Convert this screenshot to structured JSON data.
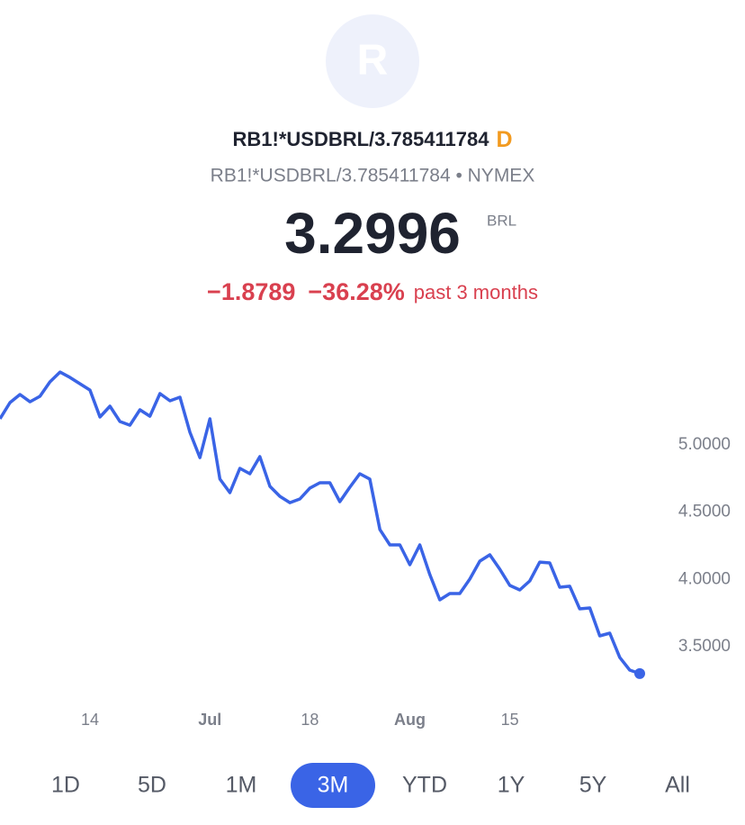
{
  "header": {
    "logo_letter": "R",
    "symbol": "RB1!*USDBRL/3.785411784",
    "badge": "D",
    "subtitle": "RB1!*USDBRL/3.785411784 • NYMEX",
    "price": "3.2996",
    "currency": "BRL",
    "change": "−1.8789",
    "change_percent": "−36.28%",
    "period": "past 3 months"
  },
  "chart_data": {
    "type": "line",
    "color": "#3a64e6",
    "grid": false,
    "categories": [
      null,
      null,
      null,
      null,
      null,
      null,
      null,
      null,
      null,
      "14",
      null,
      null,
      null,
      null,
      null,
      null,
      null,
      null,
      null,
      null,
      null,
      "Jul",
      null,
      null,
      null,
      null,
      null,
      null,
      null,
      null,
      null,
      "18",
      null,
      null,
      null,
      null,
      null,
      null,
      null,
      null,
      null,
      "Aug",
      null,
      null,
      null,
      null,
      null,
      null,
      null,
      null,
      null,
      "15",
      null,
      null,
      null,
      null,
      null,
      null,
      null,
      null,
      null,
      null,
      null,
      null,
      null
    ],
    "values": [
      5.194,
      5.315,
      5.375,
      5.321,
      5.362,
      5.469,
      5.542,
      5.502,
      5.455,
      5.408,
      5.208,
      5.288,
      5.174,
      5.147,
      5.261,
      5.214,
      5.382,
      5.328,
      5.355,
      5.094,
      4.906,
      5.194,
      4.746,
      4.645,
      4.826,
      4.786,
      4.913,
      4.692,
      4.618,
      4.571,
      4.598,
      4.679,
      4.719,
      4.719,
      4.578,
      4.685,
      4.786,
      4.746,
      4.371,
      4.257,
      4.257,
      4.109,
      4.257,
      4.036,
      3.848,
      3.895,
      3.895,
      4.002,
      4.136,
      4.183,
      4.076,
      3.955,
      3.922,
      3.989,
      4.129,
      4.123,
      3.942,
      3.949,
      3.781,
      3.788,
      3.58,
      3.6,
      3.42,
      3.326,
      3.2996
    ],
    "ylim": [
      3.1,
      5.7
    ],
    "yticks": [
      {
        "value": 3.5,
        "label": "3.5000"
      },
      {
        "value": 4.0,
        "label": "4.0000"
      },
      {
        "value": 4.5,
        "label": "4.5000"
      },
      {
        "value": 5.0,
        "label": "5.0000"
      }
    ]
  },
  "timeframes": {
    "buttons": [
      "1D",
      "5D",
      "1M",
      "3M",
      "YTD",
      "1Y",
      "5Y",
      "All"
    ],
    "selected_index": 3
  }
}
